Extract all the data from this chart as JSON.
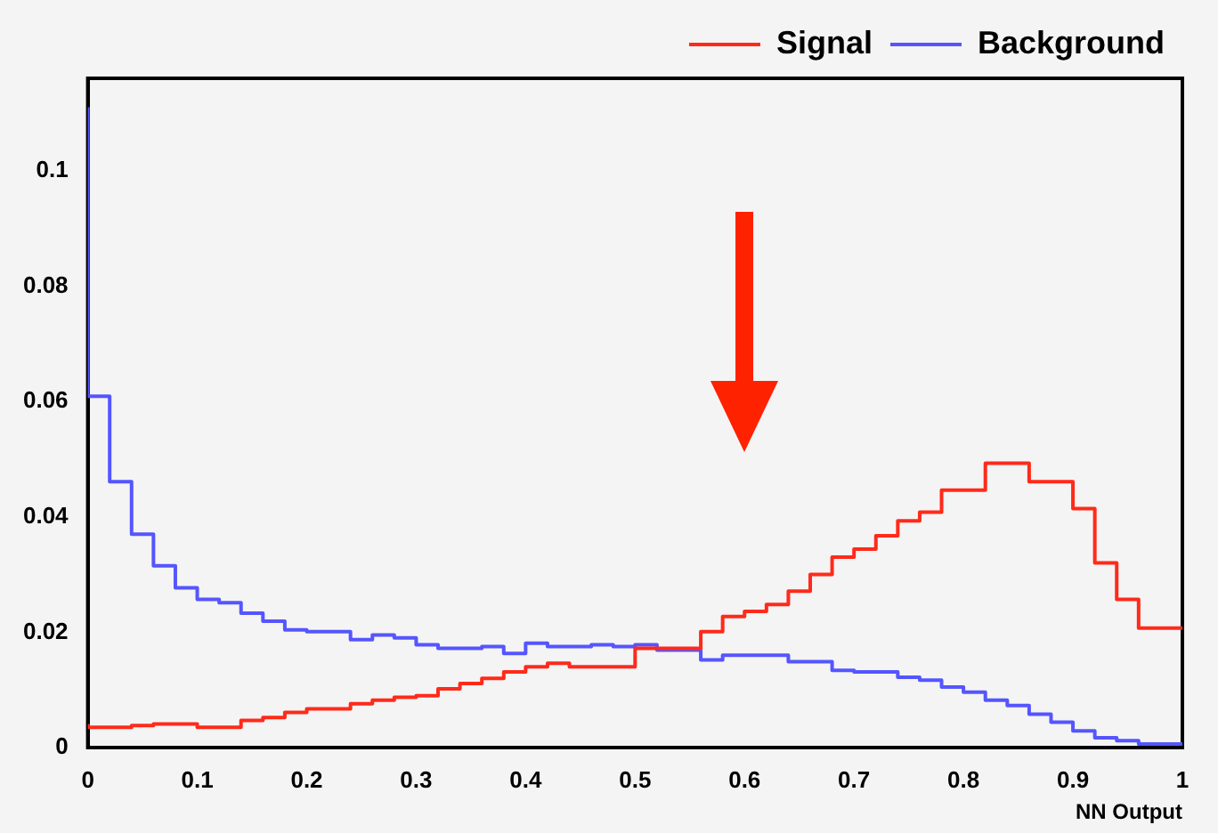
{
  "chart_data": {
    "type": "step",
    "xlabel": "NN Output",
    "x": [
      0,
      0.02,
      0.04,
      0.06,
      0.08,
      0.1,
      0.12,
      0.14,
      0.16,
      0.18,
      0.2,
      0.22,
      0.24,
      0.26,
      0.28,
      0.3,
      0.32,
      0.34,
      0.36,
      0.38,
      0.4,
      0.42,
      0.44,
      0.46,
      0.48,
      0.5,
      0.52,
      0.54,
      0.56,
      0.58,
      0.6,
      0.62,
      0.64,
      0.66,
      0.68,
      0.7,
      0.72,
      0.74,
      0.76,
      0.78,
      0.8,
      0.82,
      0.84,
      0.86,
      0.88,
      0.9,
      0.92,
      0.94,
      0.96,
      0.98,
      1
    ],
    "series": [
      {
        "name": "Signal",
        "color": "#ff2a1a",
        "values": [
          0.0041,
          0.0035,
          0.0035,
          0.0038,
          0.0041,
          0.0041,
          0.0035,
          0.0035,
          0.0047,
          0.0052,
          0.0061,
          0.0067,
          0.0067,
          0.0076,
          0.0082,
          0.0087,
          0.009,
          0.0102,
          0.0111,
          0.012,
          0.0131,
          0.014,
          0.0146,
          0.014,
          0.014,
          0.014,
          0.0172,
          0.0172,
          0.0172,
          0.0201,
          0.0227,
          0.0236,
          0.0248,
          0.0271,
          0.03,
          0.033,
          0.0344,
          0.0367,
          0.0393,
          0.0408,
          0.0446,
          0.0446,
          0.0493,
          0.0493,
          0.0461,
          0.0461,
          0.0414,
          0.032,
          0.0257,
          0.0207,
          0.0207
        ]
      },
      {
        "name": "Background",
        "color": "#5555ff",
        "values": [
          0.111,
          0.0609,
          0.0461,
          0.037,
          0.0315,
          0.0277,
          0.0257,
          0.0251,
          0.0233,
          0.0219,
          0.0204,
          0.0201,
          0.0201,
          0.0187,
          0.0195,
          0.019,
          0.0178,
          0.0172,
          0.0172,
          0.0175,
          0.0163,
          0.0181,
          0.0175,
          0.0175,
          0.0178,
          0.0175,
          0.0178,
          0.0169,
          0.0169,
          0.0152,
          0.016,
          0.016,
          0.016,
          0.0149,
          0.0149,
          0.0134,
          0.0131,
          0.0131,
          0.0122,
          0.0117,
          0.0105,
          0.0096,
          0.0082,
          0.0073,
          0.0058,
          0.0044,
          0.0029,
          0.0017,
          0.0012,
          0.0006,
          0.0006
        ]
      }
    ],
    "xlim": [
      0,
      1
    ],
    "xticks": [
      0,
      0.1,
      0.2,
      0.3,
      0.4,
      0.5,
      0.6,
      0.7,
      0.8,
      0.9,
      1
    ],
    "ylim": [
      0,
      0.116
    ],
    "yticks": [
      0,
      0.02,
      0.04,
      0.06,
      0.08,
      0.1
    ],
    "legend": "top right",
    "grid": false
  }
}
